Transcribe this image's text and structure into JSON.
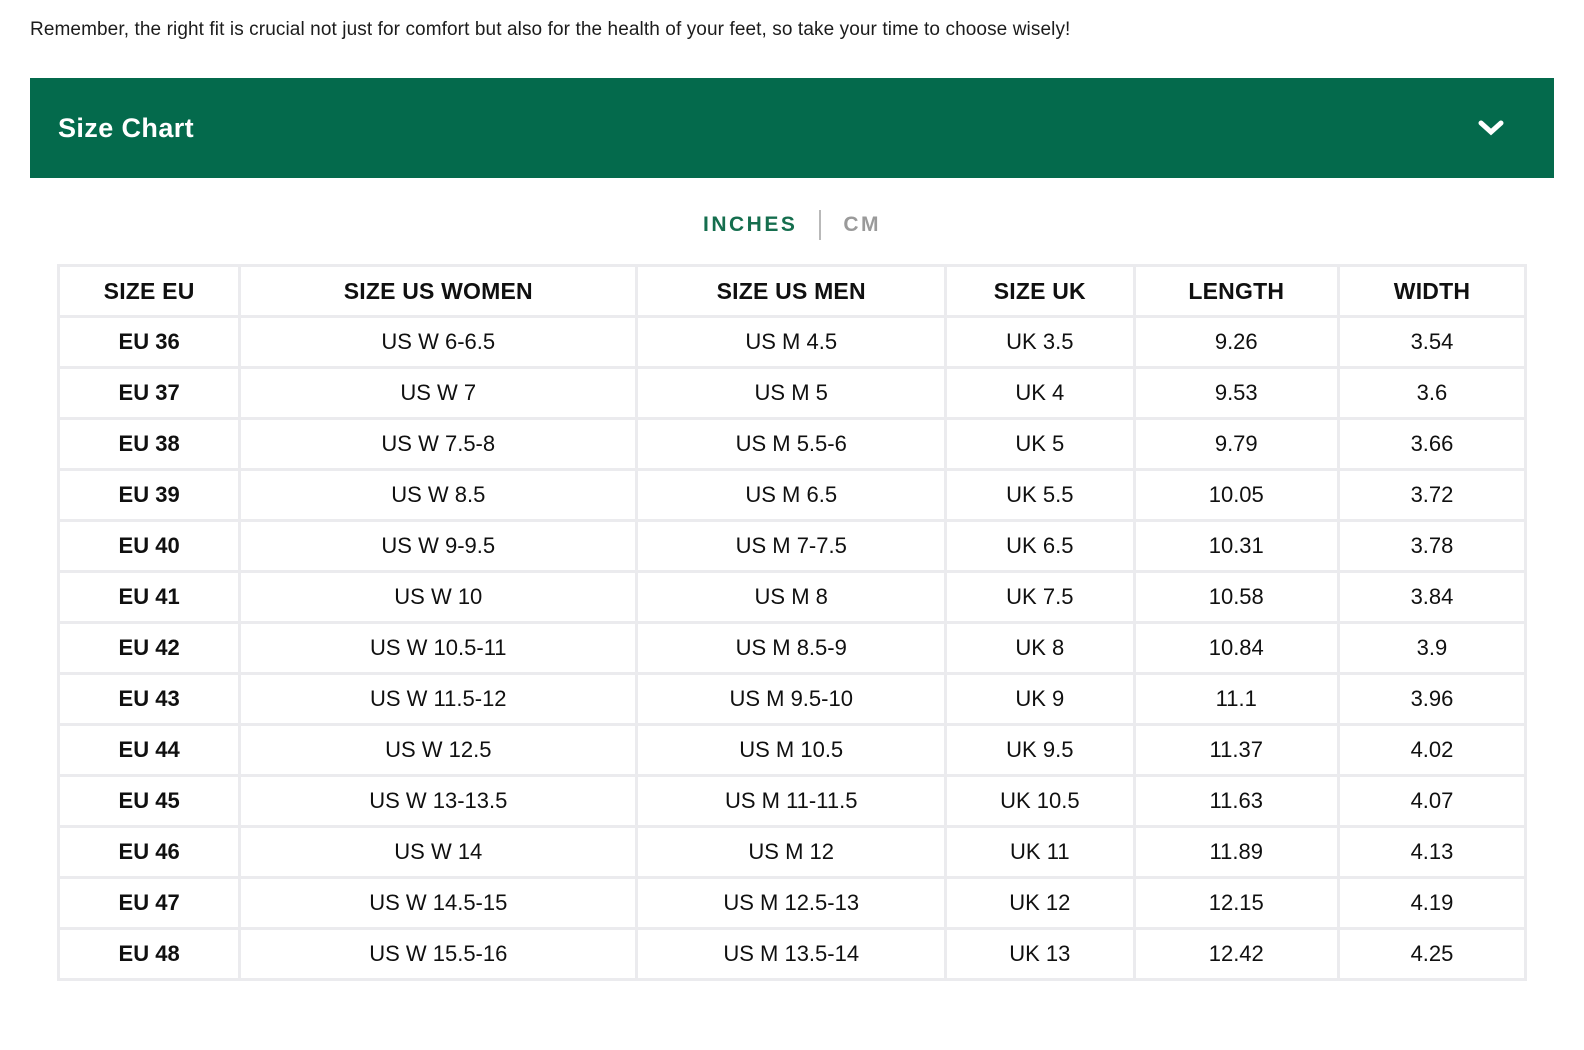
{
  "intro_text": "Remember, the right fit is crucial not just for comfort but also for the health of your feet, so take your time to choose wisely!",
  "accordion": {
    "title": "Size Chart",
    "expanded": true,
    "chevron_icon": "chevron-down-icon"
  },
  "unit_tabs": {
    "inches": "INCHES",
    "cm": "CM",
    "selected": "INCHES"
  },
  "colors": {
    "header_green": "#046a4c",
    "tab_active_green": "#156e4e",
    "tab_inactive_gray": "#9a9a9a",
    "table_gap_gray": "#ebebee",
    "text_black": "#101010"
  },
  "table": {
    "headers": [
      "SIZE EU",
      "SIZE US WOMEN",
      "SIZE US MEN",
      "SIZE UK",
      "LENGTH",
      "WIDTH"
    ],
    "rows": [
      [
        "EU 36",
        "US W 6-6.5",
        "US M 4.5",
        "UK 3.5",
        "9.26",
        "3.54"
      ],
      [
        "EU 37",
        "US W 7",
        "US M 5",
        "UK 4",
        "9.53",
        "3.6"
      ],
      [
        "EU 38",
        "US W 7.5-8",
        "US M 5.5-6",
        "UK 5",
        "9.79",
        "3.66"
      ],
      [
        "EU 39",
        "US W 8.5",
        "US M 6.5",
        "UK 5.5",
        "10.05",
        "3.72"
      ],
      [
        "EU 40",
        "US W 9-9.5",
        "US M 7-7.5",
        "UK 6.5",
        "10.31",
        "3.78"
      ],
      [
        "EU 41",
        "US W 10",
        "US M 8",
        "UK 7.5",
        "10.58",
        "3.84"
      ],
      [
        "EU 42",
        "US W 10.5-11",
        "US M 8.5-9",
        "UK 8",
        "10.84",
        "3.9"
      ],
      [
        "EU 43",
        "US W 11.5-12",
        "US M 9.5-10",
        "UK 9",
        "11.1",
        "3.96"
      ],
      [
        "EU 44",
        "US W 12.5",
        "US M 10.5",
        "UK 9.5",
        "11.37",
        "4.02"
      ],
      [
        "EU 45",
        "US W 13-13.5",
        "US M 11-11.5",
        "UK 10.5",
        "11.63",
        "4.07"
      ],
      [
        "EU 46",
        "US W 14",
        "US M 12",
        "UK 11",
        "11.89",
        "4.13"
      ],
      [
        "EU 47",
        "US W 14.5-15",
        "US M 12.5-13",
        "UK 12",
        "12.15",
        "4.19"
      ],
      [
        "EU 48",
        "US W 15.5-16",
        "US M 13.5-14",
        "UK 13",
        "12.42",
        "4.25"
      ]
    ]
  }
}
